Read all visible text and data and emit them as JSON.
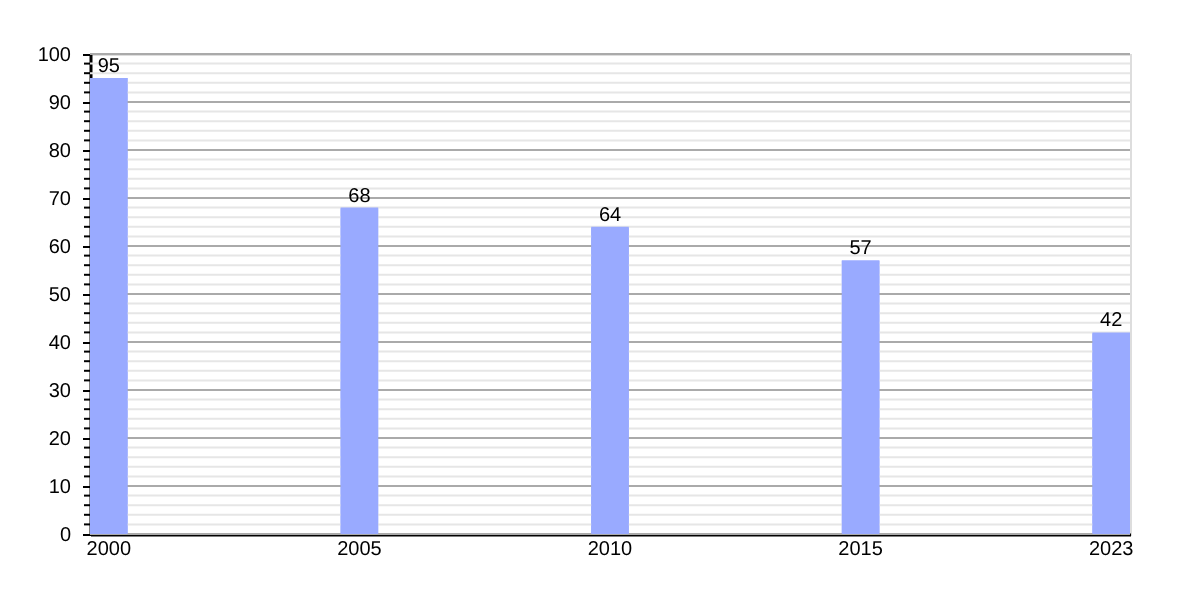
{
  "chart_data": {
    "type": "bar",
    "categories": [
      "2000",
      "2005",
      "2010",
      "2015",
      "2023"
    ],
    "values": [
      95,
      68,
      64,
      57,
      42
    ],
    "color": "#99aaff",
    "ylim": [
      0,
      100
    ],
    "yticks": [
      0,
      {
        "value": 2,
        "label": null
      },
      {
        "value": 4,
        "label": null
      },
      {
        "value": 6,
        "label": null
      },
      {
        "value": 8,
        "label": null
      },
      10,
      {
        "value": 12,
        "label": null
      },
      {
        "value": 14,
        "label": null
      },
      {
        "value": 16,
        "label": null
      },
      {
        "value": 18,
        "label": null
      },
      20,
      {
        "value": 22,
        "label": null
      },
      {
        "value": 24,
        "label": null
      },
      {
        "value": 26,
        "label": null
      },
      {
        "value": 28,
        "label": null
      },
      30,
      {
        "value": 32,
        "label": null
      },
      {
        "value": 34,
        "label": null
      },
      {
        "value": 36,
        "label": null
      },
      {
        "value": 38,
        "label": null
      },
      40,
      {
        "value": 42,
        "label": null
      },
      {
        "value": 44,
        "label": null
      },
      {
        "value": 46,
        "label": null
      },
      {
        "value": 48,
        "label": null
      },
      50,
      {
        "value": 52,
        "label": null
      },
      {
        "value": 54,
        "label": null
      },
      {
        "value": 56,
        "label": null
      },
      {
        "value": 58,
        "label": null
      },
      60,
      {
        "value": 62,
        "label": null
      },
      {
        "value": 64,
        "label": null
      },
      {
        "value": 66,
        "label": null
      },
      {
        "value": 68,
        "label": null
      },
      70,
      {
        "value": 72,
        "label": null
      },
      {
        "value": 74,
        "label": null
      },
      {
        "value": 76,
        "label": null
      },
      {
        "value": 78,
        "label": null
      },
      80,
      {
        "value": 82,
        "label": null
      },
      {
        "value": 84,
        "label": null
      },
      {
        "value": 86,
        "label": null
      },
      {
        "value": 88,
        "label": null
      },
      90,
      {
        "value": 92,
        "label": null
      },
      {
        "value": 94,
        "label": null
      },
      {
        "value": 96,
        "label": null
      },
      {
        "value": 98,
        "label": null
      },
      100
    ],
    "grid": "y",
    "data_labels": true
  }
}
